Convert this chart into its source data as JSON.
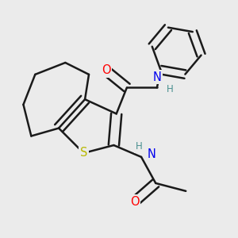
{
  "background_color": "#ebebeb",
  "bond_color": "#1a1a1a",
  "line_width": 1.8,
  "atom_colors": {
    "O": "#ff0000",
    "N": "#0000ee",
    "S": "#b8b800",
    "H": "#4a9090",
    "C": "#1a1a1a"
  },
  "font_size_atoms": 10.5,
  "font_size_H": 8.5
}
